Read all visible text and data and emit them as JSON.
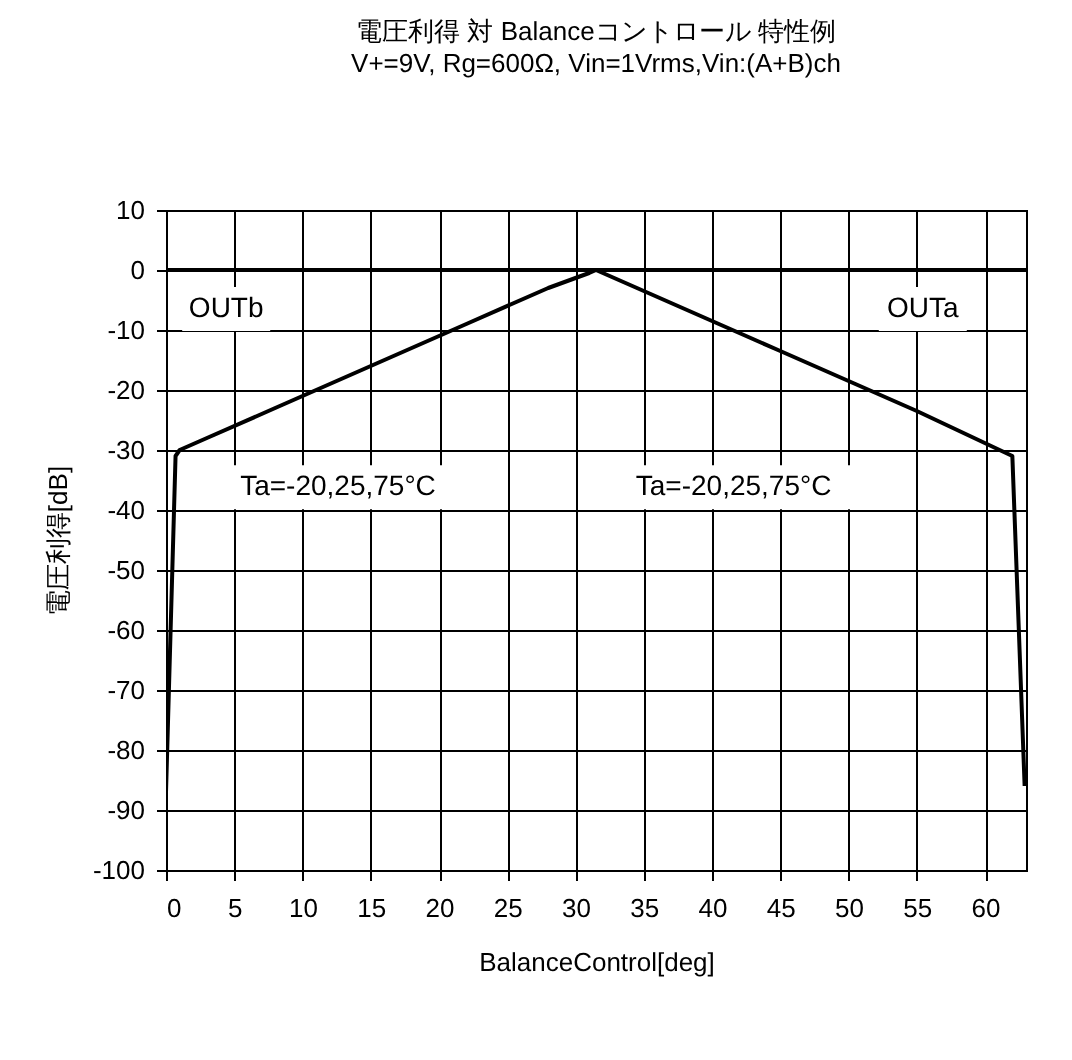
{
  "chart_data": {
    "type": "line",
    "title": "電圧利得 対 Balanceコントロール 特性例",
    "subtitle": "V+=9V, Rg=600Ω, Vin=1Vrms,Vin:(A+B)ch",
    "xlabel": "BalanceControl[deg]",
    "ylabel": "電圧利得[dB]",
    "series": [
      {
        "color": "#000000",
        "x": [
          0,
          0.7,
          1,
          3,
          8,
          15,
          22,
          28,
          31,
          31.5,
          40,
          50,
          63
        ],
        "values": [
          -87,
          -31,
          -30,
          -28,
          -23,
          -16,
          -9,
          -3,
          -0.5,
          0,
          0,
          0,
          0
        ]
      },
      {
        "color": "#000000",
        "x": [
          0,
          10,
          20,
          31,
          31.5,
          35,
          40,
          45,
          50,
          55,
          62,
          62.9
        ],
        "values": [
          0,
          0,
          0,
          0,
          0,
          -3.5,
          -8.5,
          -13.5,
          -18.5,
          -23.5,
          -31,
          -86
        ]
      }
    ],
    "xlim": [
      0,
      63
    ],
    "xticks": [
      0,
      5,
      10,
      15,
      20,
      25,
      30,
      35,
      40,
      45,
      50,
      55,
      60
    ],
    "ylim": [
      -100,
      10
    ],
    "yticks": [
      -100,
      -90,
      -80,
      -70,
      -60,
      -50,
      -40,
      -30,
      -20,
      -10,
      0,
      10
    ],
    "grid": true,
    "legend": false,
    "marker": "none",
    "line_style": "solid",
    "annotations": [
      "OUTb",
      "OUTa",
      "Ta=-20,25,75°C",
      "Ta=-20,25,75°C"
    ]
  }
}
